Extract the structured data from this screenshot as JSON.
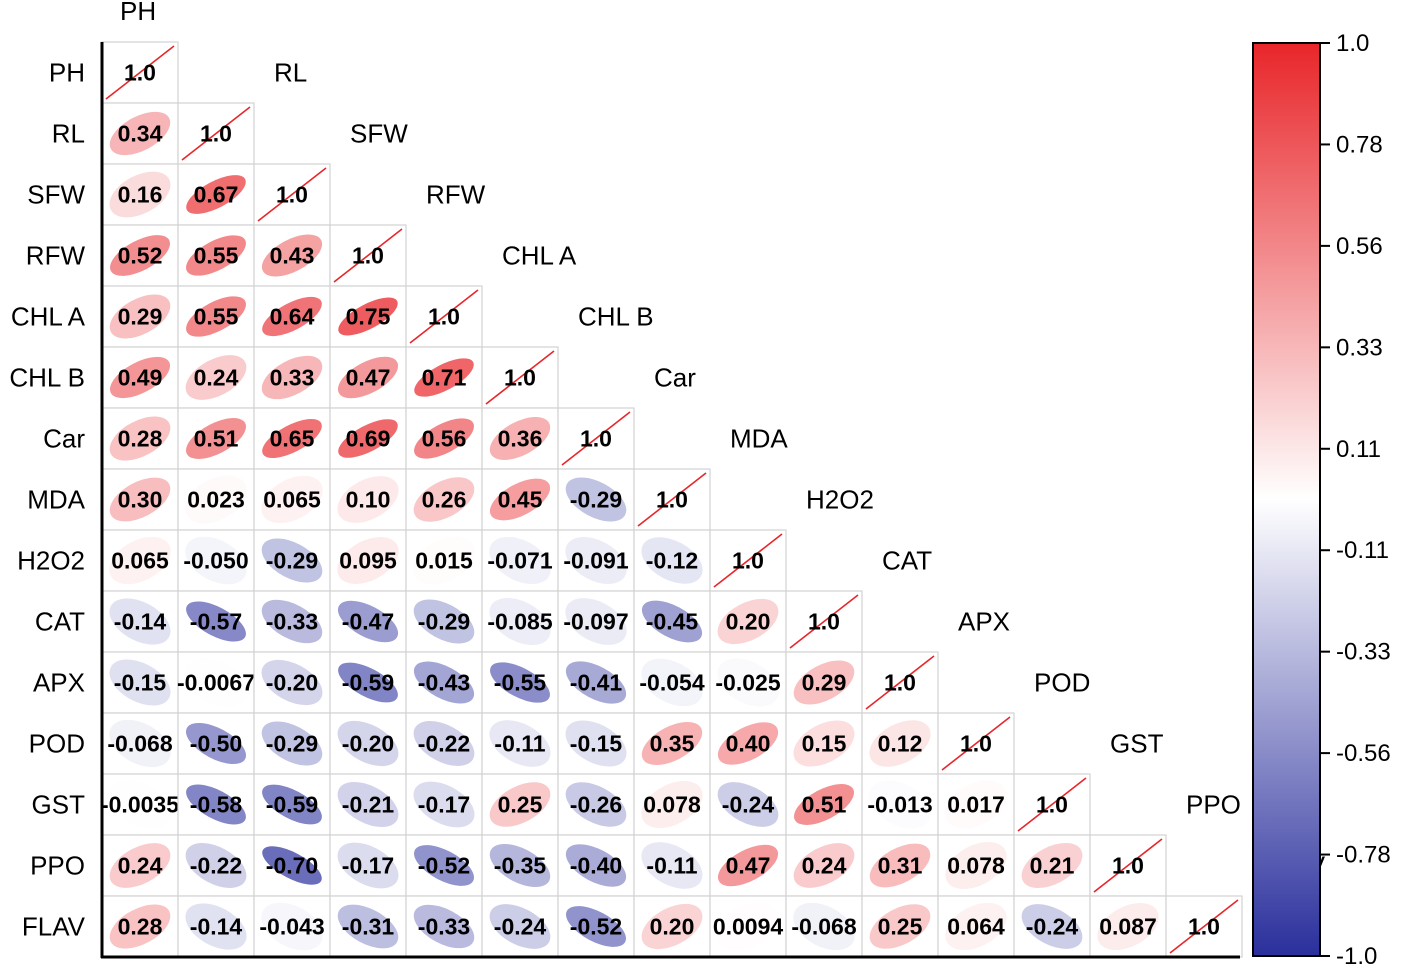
{
  "chart_data": {
    "type": "heatmap",
    "variables": [
      "PH",
      "RL",
      "SFW",
      "RFW",
      "CHL A",
      "CHL B",
      "Car",
      "MDA",
      "H2O2",
      "CAT",
      "APX",
      "POD",
      "GST",
      "PPO",
      "FLAV"
    ],
    "matrix_lower": [
      [
        "1.0"
      ],
      [
        "0.34",
        "1.0"
      ],
      [
        "0.16",
        "0.67",
        "1.0"
      ],
      [
        "0.52",
        "0.55",
        "0.43",
        "1.0"
      ],
      [
        "0.29",
        "0.55",
        "0.64",
        "0.75",
        "1.0"
      ],
      [
        "0.49",
        "0.24",
        "0.33",
        "0.47",
        "0.71",
        "1.0"
      ],
      [
        "0.28",
        "0.51",
        "0.65",
        "0.69",
        "0.56",
        "0.36",
        "1.0"
      ],
      [
        "0.30",
        "0.023",
        "0.065",
        "0.10",
        "0.26",
        "0.45",
        "-0.29",
        "1.0"
      ],
      [
        "0.065",
        "-0.050",
        "-0.29",
        "0.095",
        "0.015",
        "-0.071",
        "-0.091",
        "-0.12",
        "1.0"
      ],
      [
        "-0.14",
        "-0.57",
        "-0.33",
        "-0.47",
        "-0.29",
        "-0.085",
        "-0.097",
        "-0.45",
        "0.20",
        "1.0"
      ],
      [
        "-0.15",
        "-0.0067",
        "-0.20",
        "-0.59",
        "-0.43",
        "-0.55",
        "-0.41",
        "-0.054",
        "-0.025",
        "0.29",
        "1.0"
      ],
      [
        "-0.068",
        "-0.50",
        "-0.29",
        "-0.20",
        "-0.22",
        "-0.11",
        "-0.15",
        "0.35",
        "0.40",
        "0.15",
        "0.12",
        "1.0"
      ],
      [
        "-0.0035",
        "-0.58",
        "-0.59",
        "-0.21",
        "-0.17",
        "0.25",
        "-0.26",
        "0.078",
        "-0.24",
        "0.51",
        "-0.013",
        "0.017",
        "1.0"
      ],
      [
        "0.24",
        "-0.22",
        "-0.70",
        "-0.17",
        "-0.52",
        "-0.35",
        "-0.40",
        "-0.11",
        "0.47",
        "0.24",
        "0.31",
        "0.078",
        "0.21",
        "1.0"
      ],
      [
        "0.28",
        "-0.14",
        "-0.043",
        "-0.31",
        "-0.33",
        "-0.24",
        "-0.52",
        "0.20",
        "0.0094",
        "-0.068",
        "0.25",
        "0.064",
        "-0.24",
        "0.087",
        "1.0"
      ]
    ],
    "colorbar": {
      "ticks": [
        "1.0",
        "0.78",
        "0.56",
        "0.33",
        "0.11",
        "-0.11",
        "-0.33",
        "-0.56",
        "-0.78",
        "-1.0"
      ],
      "range": [
        -1.0,
        1.0
      ],
      "colors": {
        "high": "#e8262a",
        "mid": "#ffffff",
        "low": "#2a2f9c"
      }
    },
    "diagonal_slash_color": "#e8262a",
    "grid": true
  }
}
